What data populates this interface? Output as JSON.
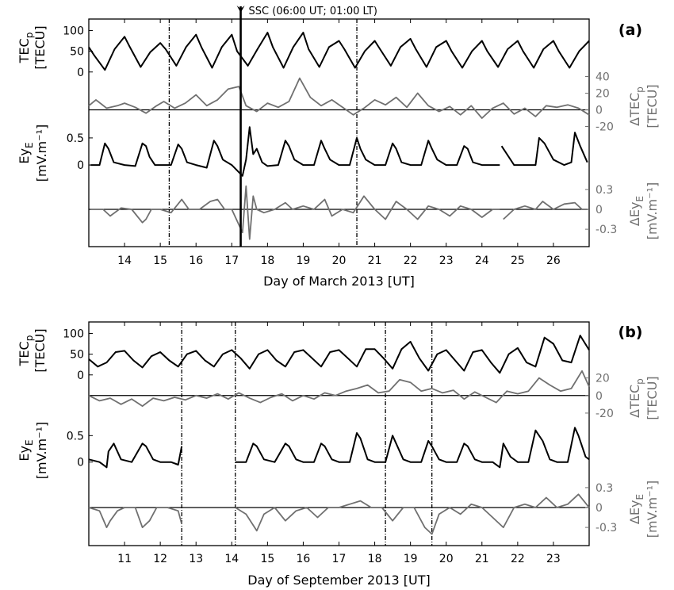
{
  "colors": {
    "primary": "#000000",
    "anomaly": "#707070"
  },
  "chart_data": [
    {
      "type": "line",
      "panel_label": "(a)",
      "xlabel": "Day of March 2013 [UT]",
      "xlim": [
        13.0,
        27.0
      ],
      "x_ticks": [
        14,
        15,
        16,
        17,
        18,
        19,
        20,
        21,
        22,
        23,
        24,
        25,
        26
      ],
      "x_tick_labels": [
        "14",
        "15",
        "16",
        "17",
        "18",
        "19",
        "20",
        "21",
        "22",
        "23",
        "24",
        "25",
        "26"
      ],
      "dashed_vlines": [
        15.25,
        20.5
      ],
      "event": {
        "x": 17.25,
        "label": "SSC (06:00 UT; 01:00 LT)"
      },
      "tec": {
        "ylabel": "TEC_p",
        "ylabel_main": "TEC",
        "ylabel_sub": "p",
        "yunit": "[TECU]",
        "ylim": [
          -10,
          120
        ],
        "ticks": [
          0,
          50,
          100
        ],
        "x": [
          13.0,
          13.15,
          13.45,
          13.72,
          14.0,
          14.15,
          14.45,
          14.72,
          15.0,
          15.15,
          15.45,
          15.72,
          16.0,
          16.15,
          16.45,
          16.72,
          17.0,
          17.15,
          17.45,
          17.72,
          18.0,
          18.15,
          18.45,
          18.72,
          19.0,
          19.15,
          19.45,
          19.72,
          20.0,
          20.15,
          20.45,
          20.72,
          21.0,
          21.15,
          21.45,
          21.72,
          22.0,
          22.15,
          22.45,
          22.72,
          23.0,
          23.15,
          23.45,
          23.72,
          24.0,
          24.15,
          24.45,
          24.72,
          25.0,
          25.15,
          25.45,
          25.72,
          26.0,
          26.15,
          26.45,
          26.72,
          27.0
        ],
        "values": [
          60,
          40,
          5,
          55,
          85,
          60,
          12,
          48,
          70,
          55,
          15,
          60,
          90,
          60,
          10,
          60,
          90,
          50,
          15,
          55,
          95,
          60,
          10,
          60,
          95,
          55,
          12,
          60,
          75,
          55,
          10,
          50,
          75,
          55,
          15,
          60,
          80,
          55,
          12,
          60,
          75,
          50,
          10,
          50,
          75,
          50,
          12,
          55,
          75,
          50,
          10,
          55,
          75,
          50,
          10,
          50,
          75
        ]
      },
      "dtec": {
        "ylabel": "ΔTEC_p",
        "ylabel_main": "ΔTEC",
        "ylabel_sub": "p",
        "yunit": "[TECU]",
        "ylim": [
          -30,
          50
        ],
        "ticks": [
          -20,
          0,
          20,
          40
        ],
        "x": [
          13.0,
          13.2,
          13.5,
          13.8,
          14.0,
          14.3,
          14.6,
          14.9,
          15.1,
          15.4,
          15.7,
          16.0,
          16.3,
          16.6,
          16.9,
          17.2,
          17.4,
          17.7,
          18.0,
          18.3,
          18.6,
          18.9,
          19.2,
          19.5,
          19.8,
          20.1,
          20.4,
          20.7,
          21.0,
          21.3,
          21.6,
          21.9,
          22.2,
          22.5,
          22.8,
          23.1,
          23.4,
          23.7,
          24.0,
          24.3,
          24.6,
          24.9,
          25.2,
          25.5,
          25.8,
          26.1,
          26.4,
          26.7,
          27.0
        ],
        "values": [
          5,
          12,
          2,
          5,
          8,
          3,
          -4,
          5,
          10,
          2,
          8,
          18,
          5,
          12,
          25,
          28,
          5,
          -2,
          8,
          3,
          10,
          38,
          15,
          5,
          12,
          3,
          -6,
          2,
          12,
          6,
          15,
          3,
          20,
          5,
          -2,
          4,
          -6,
          5,
          -10,
          2,
          8,
          -5,
          2,
          -8,
          5,
          3,
          6,
          2,
          -6
        ]
      },
      "ey": {
        "ylabel": "Ey_E",
        "ylabel_main": "Ey",
        "ylabel_sub": "E",
        "yunit": "[mV.m⁻¹]",
        "ylim": [
          -0.35,
          0.85
        ],
        "ticks": [
          0,
          0.5
        ],
        "x": [
          13.05,
          13.3,
          13.45,
          13.55,
          13.7,
          14.0,
          14.3,
          14.5,
          14.6,
          14.7,
          14.85,
          15.0,
          15.3,
          15.5,
          15.6,
          15.75,
          16.0,
          16.3,
          16.5,
          16.6,
          16.75,
          17.0,
          17.3,
          17.4,
          17.5,
          17.6,
          17.7,
          17.85,
          18.0,
          18.3,
          18.5,
          18.6,
          18.75,
          19.0,
          19.3,
          19.5,
          19.6,
          19.75,
          20.0,
          20.3,
          20.5,
          20.6,
          20.75,
          21.0,
          21.3,
          21.5,
          21.6,
          21.75,
          22.0,
          22.3,
          22.5,
          22.6,
          22.75,
          23.0,
          23.3,
          23.5,
          23.6,
          23.75,
          24.0,
          24.3,
          24.5,
          null,
          24.55,
          24.9,
          25.5,
          25.6,
          25.75,
          26.0,
          26.3,
          26.5,
          26.6,
          26.75,
          26.95
        ],
        "values": [
          0.0,
          0.0,
          0.4,
          0.3,
          0.05,
          0.0,
          -0.02,
          0.4,
          0.35,
          0.15,
          0.0,
          0.0,
          0.0,
          0.38,
          0.3,
          0.05,
          0.0,
          -0.05,
          0.45,
          0.35,
          0.1,
          0.0,
          -0.2,
          0.1,
          0.7,
          0.2,
          0.3,
          0.05,
          -0.02,
          0.0,
          0.45,
          0.35,
          0.1,
          0.0,
          0.0,
          0.45,
          0.3,
          0.1,
          0.0,
          0.0,
          0.5,
          0.3,
          0.1,
          0.0,
          0.0,
          0.4,
          0.3,
          0.05,
          0.0,
          0.0,
          0.45,
          0.3,
          0.1,
          0.0,
          0.0,
          0.35,
          0.3,
          0.05,
          0.0,
          0.0,
          0.0,
          null,
          0.35,
          0.0,
          0.0,
          0.5,
          0.4,
          0.1,
          0.0,
          0.05,
          0.6,
          0.35,
          0.05
        ]
      },
      "dey": {
        "ylabel": "ΔEy_E",
        "ylabel_main": "ΔEy",
        "ylabel_sub": "E",
        "yunit": "[mV.m⁻¹]",
        "ylim": [
          -0.55,
          0.55
        ],
        "ticks": [
          -0.3,
          0,
          0.3
        ],
        "x": [
          13.05,
          13.4,
          13.6,
          13.9,
          14.2,
          14.5,
          14.6,
          14.75,
          15.0,
          15.3,
          15.6,
          15.8,
          16.1,
          16.4,
          16.6,
          16.8,
          17.0,
          17.3,
          17.4,
          17.5,
          17.6,
          17.7,
          17.9,
          18.2,
          18.5,
          18.7,
          19.0,
          19.3,
          19.6,
          19.8,
          20.1,
          20.4,
          20.7,
          21.0,
          21.3,
          21.6,
          21.9,
          22.2,
          22.5,
          22.8,
          23.1,
          23.4,
          23.7,
          24.0,
          24.3,
          24.5,
          null,
          24.6,
          24.9,
          25.2,
          25.5,
          25.7,
          26.0,
          26.3,
          26.6,
          26.8,
          26.95
        ],
        "values": [
          0.0,
          0.0,
          -0.1,
          0.02,
          0.0,
          -0.2,
          -0.15,
          0.0,
          0.0,
          -0.05,
          0.15,
          0.0,
          0.0,
          0.12,
          0.15,
          0.0,
          0.0,
          -0.35,
          0.35,
          -0.45,
          0.2,
          0.0,
          -0.05,
          0.0,
          0.1,
          0.0,
          0.05,
          0.0,
          0.15,
          -0.1,
          0.0,
          -0.05,
          0.2,
          0.0,
          -0.15,
          0.12,
          0.0,
          -0.15,
          0.05,
          0.0,
          -0.1,
          0.05,
          0.0,
          -0.12,
          0.0,
          0.0,
          null,
          -0.15,
          0.0,
          0.05,
          0.0,
          0.12,
          0.0,
          0.08,
          0.1,
          0.0,
          0.0
        ]
      }
    },
    {
      "type": "line",
      "panel_label": "(b)",
      "xlabel": "Day of September 2013 [UT]",
      "xlim": [
        10.0,
        24.0
      ],
      "x_ticks": [
        11,
        12,
        13,
        14,
        15,
        16,
        17,
        18,
        19,
        20,
        21,
        22,
        23
      ],
      "x_tick_labels": [
        "11",
        "12",
        "13",
        "14",
        "15",
        "16",
        "17",
        "18",
        "19",
        "20",
        "21",
        "22",
        "23"
      ],
      "dashed_vlines": [
        12.6,
        14.1,
        18.3,
        19.6
      ],
      "tec": {
        "ylabel": "TEC_p",
        "ylabel_main": "TEC",
        "ylabel_sub": "p",
        "yunit": "[TECU]",
        "ylim": [
          -10,
          120
        ],
        "ticks": [
          0,
          50,
          100
        ],
        "x": [
          10.0,
          10.25,
          10.5,
          10.75,
          11.0,
          11.25,
          11.5,
          11.75,
          12.0,
          12.25,
          12.5,
          12.75,
          13.0,
          13.25,
          13.5,
          13.75,
          14.0,
          14.25,
          14.5,
          14.75,
          15.0,
          15.25,
          15.5,
          15.75,
          16.0,
          16.25,
          16.5,
          16.75,
          17.0,
          17.25,
          17.5,
          17.75,
          18.0,
          18.25,
          18.5,
          18.75,
          19.0,
          19.25,
          19.5,
          19.75,
          20.0,
          20.25,
          20.5,
          20.75,
          21.0,
          21.25,
          21.5,
          21.75,
          22.0,
          22.25,
          22.5,
          22.75,
          23.0,
          23.25,
          23.5,
          23.75,
          24.0
        ],
        "values": [
          38,
          20,
          30,
          55,
          58,
          35,
          18,
          45,
          55,
          35,
          20,
          50,
          58,
          35,
          20,
          50,
          60,
          40,
          15,
          50,
          60,
          35,
          20,
          55,
          60,
          40,
          20,
          55,
          60,
          40,
          20,
          62,
          62,
          40,
          15,
          62,
          80,
          40,
          10,
          50,
          60,
          35,
          10,
          55,
          60,
          30,
          5,
          50,
          65,
          30,
          20,
          90,
          75,
          35,
          30,
          95,
          60
        ]
      },
      "dtec": {
        "ylabel": "ΔTEC_p",
        "ylabel_main": "ΔTEC",
        "ylabel_sub": "p",
        "yunit": "[TECU]",
        "ylim": [
          -30,
          35
        ],
        "ticks": [
          -20,
          0,
          20
        ],
        "x": [
          10.0,
          10.3,
          10.6,
          10.9,
          11.2,
          11.5,
          11.8,
          12.1,
          12.4,
          12.7,
          13.0,
          13.3,
          13.6,
          13.9,
          14.2,
          14.5,
          14.8,
          15.1,
          15.4,
          15.7,
          16.0,
          16.3,
          16.6,
          16.9,
          17.2,
          17.5,
          17.8,
          18.1,
          18.4,
          18.7,
          19.0,
          19.3,
          19.6,
          19.9,
          20.2,
          20.5,
          20.8,
          21.1,
          21.4,
          21.7,
          22.0,
          22.3,
          22.6,
          22.9,
          23.2,
          23.5,
          23.8,
          24.0
        ],
        "values": [
          0,
          -6,
          -3,
          -10,
          -4,
          -12,
          -3,
          -6,
          -2,
          -5,
          0,
          -3,
          2,
          -4,
          3,
          -3,
          -8,
          -2,
          2,
          -6,
          0,
          -4,
          3,
          0,
          5,
          8,
          12,
          3,
          5,
          18,
          15,
          5,
          8,
          3,
          6,
          -4,
          4,
          -2,
          -8,
          5,
          2,
          5,
          20,
          12,
          5,
          8,
          28,
          10
        ]
      },
      "ey": {
        "ylabel": "Ey_E",
        "ylabel_main": "Ey",
        "ylabel_sub": "E",
        "yunit": "[mV.m⁻¹]",
        "ylim": [
          -0.35,
          0.85
        ],
        "ticks": [
          0,
          0.5
        ],
        "x": [
          10.0,
          10.3,
          10.5,
          10.55,
          10.7,
          10.9,
          11.2,
          11.5,
          11.6,
          11.8,
          12.0,
          12.3,
          12.5,
          12.6,
          null,
          14.1,
          14.4,
          14.6,
          14.7,
          14.9,
          15.2,
          15.5,
          15.6,
          15.8,
          16.0,
          16.3,
          16.5,
          16.6,
          16.8,
          17.0,
          17.3,
          17.5,
          17.6,
          17.8,
          18.0,
          18.3,
          18.5,
          18.6,
          18.8,
          19.0,
          19.3,
          19.5,
          19.6,
          19.8,
          20.0,
          20.3,
          20.5,
          20.6,
          20.8,
          21.0,
          21.3,
          21.5,
          21.6,
          21.8,
          22.0,
          22.3,
          22.5,
          22.7,
          22.9,
          23.1,
          23.4,
          23.6,
          23.7,
          23.9,
          24.0
        ],
        "values": [
          0.05,
          0.0,
          -0.1,
          0.2,
          0.35,
          0.05,
          0.0,
          0.35,
          0.3,
          0.05,
          0.0,
          0.0,
          -0.05,
          0.3,
          null,
          0.0,
          0.0,
          0.35,
          0.3,
          0.05,
          0.0,
          0.35,
          0.3,
          0.05,
          0.0,
          0.0,
          0.35,
          0.3,
          0.05,
          0.0,
          0.0,
          0.55,
          0.45,
          0.05,
          0.0,
          0.0,
          0.5,
          0.35,
          0.05,
          0.0,
          0.0,
          0.4,
          0.3,
          0.05,
          0.0,
          0.0,
          0.35,
          0.3,
          0.05,
          0.0,
          0.0,
          -0.1,
          0.35,
          0.1,
          0.0,
          0.0,
          0.6,
          0.4,
          0.05,
          0.0,
          0.0,
          0.65,
          0.5,
          0.1,
          0.05
        ]
      },
      "dey": {
        "ylabel": "ΔEy_E",
        "ylabel_main": "ΔEy",
        "ylabel_sub": "E",
        "yunit": "[mV.m⁻¹]",
        "ylim": [
          -0.55,
          0.55
        ],
        "ticks": [
          -0.3,
          0,
          0.3
        ],
        "x": [
          10.0,
          10.3,
          10.5,
          10.6,
          10.8,
          11.0,
          11.3,
          11.5,
          11.7,
          11.9,
          12.2,
          12.5,
          12.6,
          null,
          14.1,
          14.4,
          14.7,
          14.9,
          15.2,
          15.5,
          15.8,
          16.1,
          16.4,
          16.7,
          17.0,
          17.3,
          17.6,
          17.9,
          18.2,
          18.5,
          18.8,
          19.1,
          19.4,
          19.6,
          19.8,
          20.1,
          20.4,
          20.7,
          21.0,
          21.3,
          21.6,
          21.9,
          22.2,
          22.5,
          22.8,
          23.1,
          23.4,
          23.7,
          24.0
        ],
        "values": [
          0.0,
          -0.05,
          -0.3,
          -0.2,
          -0.05,
          0.0,
          0.0,
          -0.3,
          -0.2,
          0.0,
          0.0,
          -0.05,
          -0.25,
          null,
          0.0,
          -0.1,
          -0.35,
          -0.1,
          0.0,
          -0.2,
          -0.05,
          0.0,
          -0.15,
          0.0,
          0.0,
          0.05,
          0.1,
          0.0,
          0.0,
          -0.2,
          0.0,
          0.0,
          -0.3,
          -0.4,
          -0.1,
          0.0,
          -0.1,
          0.05,
          0.0,
          -0.15,
          -0.3,
          0.0,
          0.05,
          0.0,
          0.15,
          0.0,
          0.05,
          0.2,
          0.0
        ]
      }
    }
  ]
}
